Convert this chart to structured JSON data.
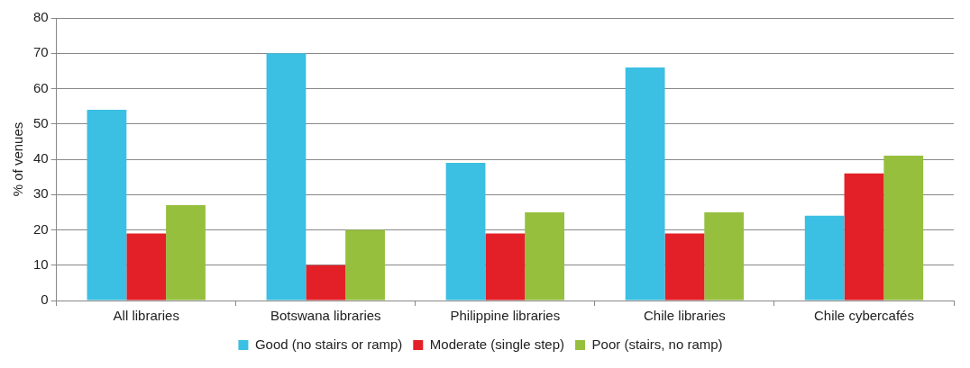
{
  "chart_data": {
    "type": "bar",
    "ylabel": "% of venues",
    "categories": [
      "All libraries",
      "Botswana libraries",
      "Philippine libraries",
      "Chile libraries",
      "Chile cybercafés"
    ],
    "series": [
      {
        "name": "Good (no stairs or ramp)",
        "color": "#3bbfe3",
        "values": [
          54,
          70,
          39,
          66,
          24
        ]
      },
      {
        "name": "Moderate (single step)",
        "color": "#e32028",
        "values": [
          19,
          10,
          19,
          19,
          36
        ]
      },
      {
        "name": "Poor (stairs, no ramp)",
        "color": "#96bf3e",
        "values": [
          27,
          20,
          25,
          25,
          41
        ]
      }
    ],
    "ylim": [
      0,
      80
    ],
    "yticks": [
      0,
      10,
      20,
      30,
      40,
      50,
      60,
      70,
      80
    ],
    "grid": "y",
    "legend": "bottom"
  }
}
